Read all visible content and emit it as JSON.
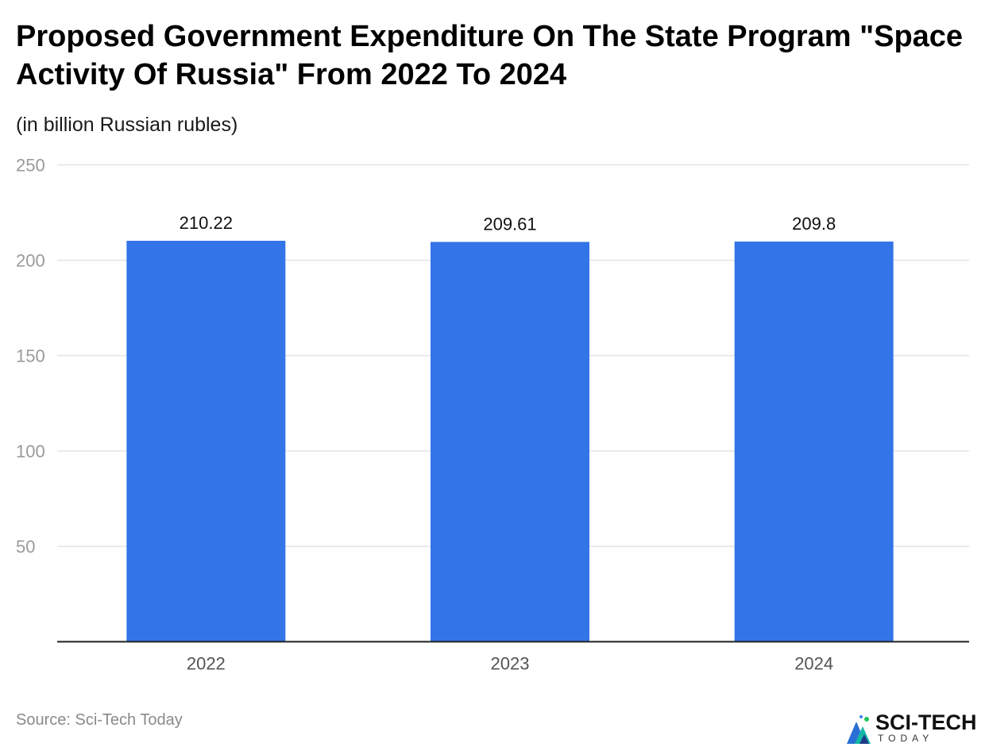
{
  "header": {
    "title": "Proposed Government Expenditure On The State Program \"Space Activity Of Russia\" From 2022 To 2024",
    "subtitle": "(in billion Russian rubles)"
  },
  "footer": {
    "source": "Source: Sci-Tech Today",
    "logo_text": "SCI-TECH",
    "logo_subtext": "TODAY",
    "logo_icon": "sci-tech-today-logo-icon"
  },
  "colors": {
    "bar": "#3375e8",
    "grid": "#e2e2e2",
    "axis": "#222222",
    "tick_label": "#9a9a9a",
    "category_label": "#555555",
    "data_label": "#111111"
  },
  "chart_data": {
    "type": "bar",
    "categories": [
      "2022",
      "2023",
      "2024"
    ],
    "values": [
      210.22,
      209.61,
      209.8
    ],
    "data_labels": [
      "210.22",
      "209.61",
      "209.8"
    ],
    "title": "Proposed Government Expenditure On The State Program \"Space Activity Of Russia\" From 2022 To 2024",
    "subtitle": "(in billion Russian rubles)",
    "xlabel": "",
    "ylabel": "",
    "ylim": [
      0,
      250
    ],
    "yticks": [
      50,
      100,
      150,
      200,
      250
    ],
    "ytick_labels": [
      "50",
      "100",
      "150",
      "200",
      "250"
    ],
    "grid": true,
    "legend": "none"
  }
}
